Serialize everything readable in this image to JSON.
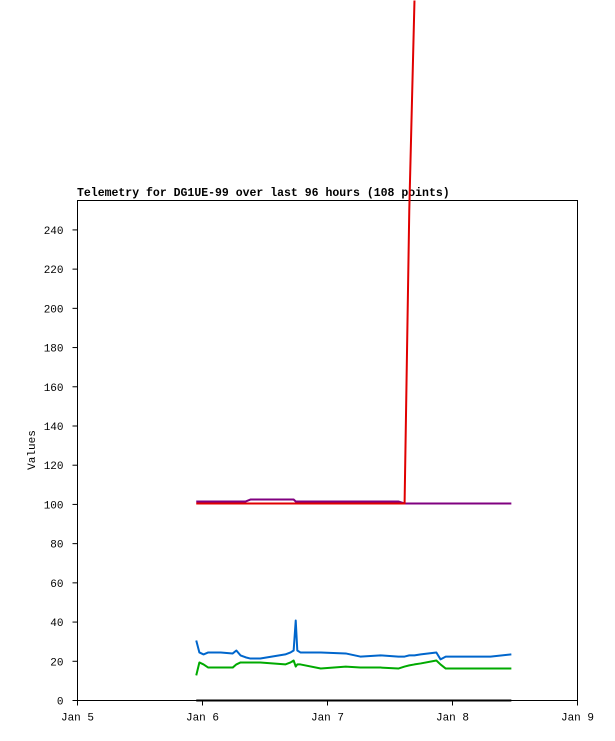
{
  "chart_data": {
    "type": "line",
    "title": "Telemetry for DG1UE-99 over last 96 hours (108 points)",
    "y_label": "Values",
    "x": [
      22.8,
      23.4,
      24.2,
      25.1,
      27.5,
      29.8,
      30.5,
      31.3,
      32.3,
      33.2,
      35.1,
      39.9,
      40.9,
      41.5,
      41.9,
      42.2,
      42.8,
      46.7,
      51.5,
      54.3,
      58.2,
      61.6,
      62.8,
      63.7,
      64.7,
      65.9,
      68.9,
      69.7,
      70.7,
      73.5,
      79.3,
      83.3
    ],
    "series": [
      {
        "color": "#0066cc",
        "values": [
          30.6,
          24.5,
          23.5,
          24.5,
          24.5,
          24,
          25.5,
          23,
          22,
          21.4,
          21.4,
          23.5,
          24.5,
          25.5,
          40.8,
          25.5,
          24.5,
          24.5,
          24,
          22.4,
          23,
          22.4,
          22.4,
          23,
          23,
          23.5,
          24.5,
          21,
          22.4,
          22.4,
          22.4,
          23.5
        ]
      },
      {
        "color": "#00aa00",
        "values": [
          12.8,
          19.4,
          18.4,
          16.8,
          16.8,
          16.8,
          18.4,
          19.4,
          19.4,
          19.4,
          19.4,
          18.4,
          19.4,
          20.4,
          17.3,
          18.4,
          18.4,
          16.3,
          17.3,
          16.8,
          16.8,
          16.3,
          17.3,
          17.9,
          18.4,
          18.9,
          20.4,
          18.4,
          16.3,
          16.3,
          16.3,
          16.3
        ]
      },
      {
        "color": "#800080",
        "values": [
          101.5,
          101.5,
          101.5,
          101.5,
          101.5,
          101.5,
          101.5,
          101.5,
          101.5,
          102.5,
          102.5,
          102.5,
          102.5,
          102.5,
          101.5,
          101.5,
          101.5,
          101.5,
          101.5,
          101.5,
          101.5,
          101.5,
          100.5,
          100.5,
          100.5,
          100.5,
          100.5,
          100.5,
          100.5,
          100.5,
          100.5,
          100.5
        ]
      },
      {
        "color": "#e00000",
        "values": [
          100.5,
          100.5,
          100.5,
          100.5,
          100.5,
          100.5,
          100.5,
          100.5,
          100.5,
          100.5,
          100.5,
          100.5,
          100.5,
          100.5,
          100.5,
          100.5,
          100.5,
          100.5,
          100.5,
          100.5,
          100.5,
          100.5,
          100.5,
          250,
          357,
          null,
          null,
          null,
          null,
          null,
          null,
          null
        ]
      },
      {
        "color": "#000000",
        "values": [
          0,
          0,
          0,
          0,
          0,
          0,
          0,
          0,
          0,
          0,
          0,
          0,
          0,
          0,
          0,
          0,
          0,
          0,
          0,
          0,
          0,
          0,
          0,
          0,
          0,
          0,
          0,
          0,
          0,
          0,
          0,
          0
        ]
      }
    ],
    "xlim": [
      0,
      96
    ],
    "xticks": [
      {
        "value": 0,
        "label": "Jan 5"
      },
      {
        "value": 24,
        "label": "Jan 6"
      },
      {
        "value": 48,
        "label": "Jan 7"
      },
      {
        "value": 72,
        "label": "Jan 8"
      },
      {
        "value": 96,
        "label": "Jan 9"
      }
    ],
    "ylim": [
      0,
      255
    ],
    "yticks": [
      0,
      20,
      40,
      60,
      80,
      100,
      120,
      140,
      160,
      180,
      200,
      220,
      240
    ],
    "grid": false
  }
}
